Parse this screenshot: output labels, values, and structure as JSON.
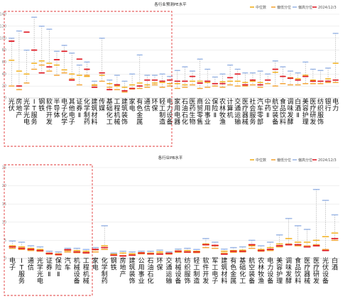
{
  "colors": {
    "median": "#f2b01e",
    "q1": "#f4a63a",
    "q3": "#9db8e6",
    "current": "#e0202a",
    "highlight_box": "#e23b3b"
  },
  "chart_data": [
    {
      "type": "scatter",
      "title": "各行业预测PE水平",
      "legend": [
        "中位数",
        "偏低分位",
        "偏高分位",
        "2024/12/3"
      ],
      "legend_position": "top-right",
      "ylim": [
        0,
        140
      ],
      "yticks": [
        0,
        20,
        40,
        60,
        80,
        100,
        120,
        140
      ],
      "grid": true,
      "categories": [
        "光伏",
        "房地产",
        "光学光电子",
        "IT服务Ⅱ",
        "钢铁",
        "软件开发",
        "半导体",
        "电子化学品Ⅱ",
        "其他电子",
        "证券Ⅱ",
        "化学制药",
        "建筑材料",
        "传媒",
        "基础化工",
        "工程机械",
        "建筑装饰",
        "家电",
        "有色金属",
        "通信",
        "环保",
        "轻工制造",
        "电力设备",
        "家用电器",
        "石油石化",
        "医药生物",
        "商贸零售",
        "公用事业",
        "保险Ⅱ",
        "农林牧渔",
        "计算机",
        "交通运输",
        "医疗器械",
        "社会服务",
        "汽车零部件",
        "中药Ⅱ",
        "航空装备Ⅱ",
        "食品饮料",
        "调味发酵品",
        "白酒Ⅱ",
        "美容护理",
        "医疗研发外包",
        "纺织服饰",
        "银行",
        "电力"
      ],
      "series": [
        {
          "name": "中位数",
          "values": [
            63,
            45,
            40,
            58,
            62,
            58,
            55,
            47,
            40,
            38,
            36,
            22,
            38,
            24,
            20,
            18,
            22,
            25,
            22,
            25,
            26,
            24,
            24,
            22,
            28,
            28,
            26,
            24,
            27,
            28,
            28,
            26,
            28,
            26,
            30,
            43,
            36,
            34,
            32,
            38,
            30,
            28,
            32,
            58
          ]
        },
        {
          "name": "偏低分位",
          "values": [
            20,
            14,
            25,
            48,
            55,
            45,
            38,
            42,
            32,
            22,
            38,
            21,
            28,
            18,
            14,
            10,
            15,
            16,
            18,
            22,
            18,
            20,
            16,
            18,
            22,
            16,
            18,
            20,
            18,
            22,
            20,
            20,
            22,
            18,
            24,
            20,
            24,
            22,
            22,
            24,
            24,
            24,
            26,
            26
          ]
        },
        {
          "name": "偏高分位",
          "values": [
            100,
            112,
            80,
            135,
            120,
            115,
            78,
            88,
            75,
            55,
            60,
            28,
            100,
            30,
            38,
            28,
            40,
            72,
            38,
            38,
            40,
            36,
            46,
            52,
            45,
            65,
            48,
            35,
            40,
            55,
            48,
            42,
            42,
            45,
            40,
            62,
            52,
            45,
            42,
            60,
            48,
            46,
            50,
            108
          ]
        },
        {
          "name": "2024/12/3",
          "values": [
            95,
            20,
            110,
            80,
            42,
            52,
            64,
            78,
            30,
            65,
            48,
            18,
            42,
            14,
            22,
            12,
            16,
            20,
            30,
            30,
            28,
            30,
            28,
            28,
            36,
            25,
            28,
            24,
            24,
            34,
            40,
            22,
            30,
            22,
            30,
            48,
            36,
            33,
            30,
            36,
            28,
            28,
            28,
            30
          ]
        }
      ]
    },
    {
      "type": "scatter",
      "title": "各行业PB水平",
      "legend": [
        "中位数",
        "偏低分位",
        "偏高分位",
        "2024/12/3"
      ],
      "legend_position": "top-right",
      "ylim": [
        0,
        25
      ],
      "yticks": [
        0,
        5,
        10,
        15,
        20,
        25
      ],
      "grid": true,
      "categories": [
        "电子",
        "IT服务Ⅱ",
        "通信",
        "光学光电子",
        "证券Ⅱ",
        "保险Ⅱ",
        "汽车",
        "机械设备",
        "工程机械",
        "家电",
        "化学制药",
        "钢铁",
        "房地产",
        "建筑装饰",
        "公用事业",
        "石油石化",
        "环保",
        "交通运输",
        "机械设备",
        "纺织服饰",
        "轻工制造",
        "软件开发",
        "军工电子",
        "建筑材料",
        "有色金属",
        "基础化工",
        "航空装备Ⅱ",
        "农林牧渔",
        "电力设备",
        "美容护理",
        "调味发酵品",
        "食品饮料",
        "医疗器械",
        "医疗研发外包",
        "光伏设备",
        "白酒"
      ],
      "series": [
        {
          "name": "中位数",
          "values": [
            3.5,
            3.2,
            2.8,
            2.5,
            1.5,
            1.3,
            2.2,
            2.2,
            2.0,
            2.4,
            3.5,
            1.2,
            1.5,
            1.3,
            1.6,
            1.5,
            1.8,
            1.5,
            2.1,
            2.2,
            2.0,
            4.0,
            3.5,
            2.0,
            2.2,
            2.3,
            3.5,
            2.5,
            3.0,
            4.0,
            5.5,
            4.5,
            4.5,
            5.0,
            6.0,
            7.0
          ]
        },
        {
          "name": "偏低分位",
          "values": [
            2.8,
            2.5,
            2.2,
            2.0,
            1.2,
            1.0,
            1.8,
            1.6,
            1.5,
            1.8,
            2.5,
            0.9,
            0.8,
            1.0,
            1.3,
            1.2,
            1.4,
            1.2,
            1.7,
            1.7,
            1.6,
            3.0,
            2.8,
            1.5,
            1.7,
            1.8,
            2.8,
            2.0,
            2.2,
            3.2,
            4.0,
            3.5,
            3.5,
            3.8,
            2.5,
            5.0
          ]
        },
        {
          "name": "偏高分位",
          "values": [
            4.8,
            4.5,
            3.5,
            3.2,
            2.0,
            1.8,
            2.8,
            2.8,
            2.5,
            3.0,
            9.0,
            1.5,
            2.0,
            1.8,
            2.0,
            2.0,
            2.3,
            1.8,
            2.6,
            2.8,
            2.5,
            5.5,
            4.5,
            2.6,
            3.0,
            3.2,
            5.0,
            3.5,
            4.5,
            6.5,
            11.0,
            9.0,
            8.0,
            19.0,
            16.0,
            12.0
          ]
        },
        {
          "name": "2024/12/3",
          "values": [
            3.2,
            2.8,
            2.5,
            2.2,
            1.4,
            1.1,
            2.4,
            1.8,
            1.6,
            2.5,
            3.0,
            0.9,
            0.7,
            0.9,
            1.5,
            1.3,
            1.2,
            1.4,
            2.0,
            1.8,
            1.8,
            3.8,
            3.6,
            1.2,
            2.0,
            2.0,
            3.8,
            2.2,
            2.5,
            3.5,
            3.8,
            3.8,
            3.2,
            3.5,
            2.2,
            5.5
          ]
        }
      ]
    }
  ]
}
